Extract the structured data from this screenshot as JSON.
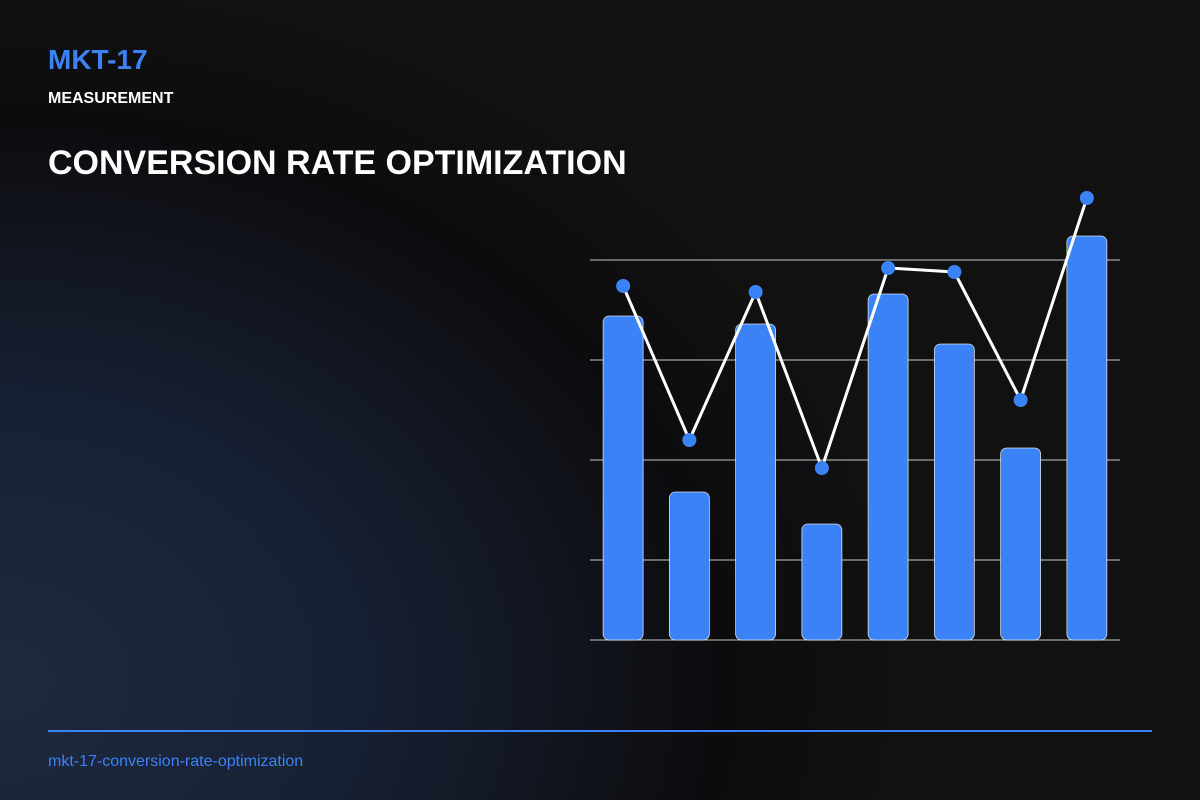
{
  "header": {
    "code": "MKT-17",
    "category": "MEASUREMENT",
    "title": "CONVERSION RATE OPTIMIZATION"
  },
  "footer": {
    "slug": "mkt-17-conversion-rate-optimization"
  },
  "chart_data": {
    "type": "combo",
    "categories": [
      null,
      null,
      null,
      null,
      null,
      null,
      null,
      null
    ],
    "series": [
      {
        "type": "bar",
        "color": "#3b82f6",
        "values": [
          81,
          37,
          79,
          29,
          86.5,
          74,
          48,
          101
        ]
      },
      {
        "type": "line",
        "color": "#ffffff",
        "marker_color": "#3b82f6",
        "values": [
          88.5,
          50,
          87,
          43,
          93,
          92,
          60,
          110.5
        ]
      }
    ],
    "ylim": [
      0,
      112
    ],
    "gridlines": [
      20,
      45,
      70,
      95
    ],
    "grid": true
  }
}
